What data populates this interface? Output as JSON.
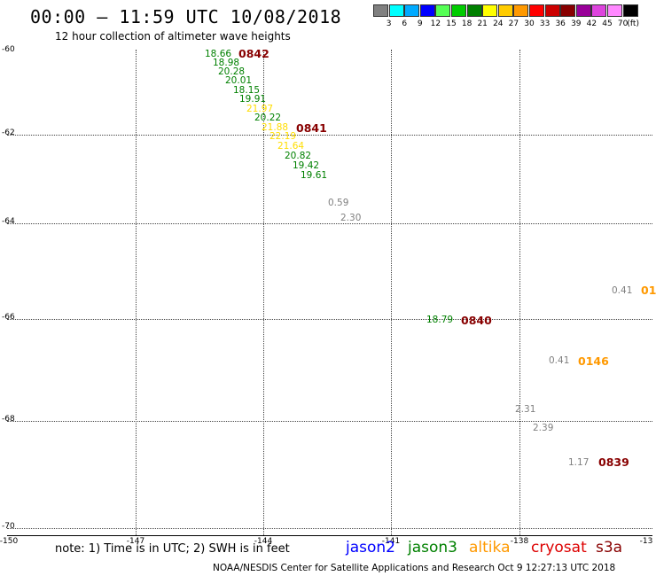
{
  "header": {
    "title": "00:00 – 11:59 UTC 10/08/2018",
    "subtitle": "12 hour collection of altimeter wave heights"
  },
  "legend": {
    "colors": [
      "#808080",
      "#00ffff",
      "#00aaff",
      "#0000ff",
      "#55ff55",
      "#00cc00",
      "#008000",
      "#ffff00",
      "#ffcc00",
      "#ff9900",
      "#ff0000",
      "#cc0000",
      "#880000",
      "#990099",
      "#dd44dd",
      "#ff88ff",
      "#000000"
    ],
    "labels": [
      "3",
      "6",
      "9",
      "12",
      "15",
      "18",
      "21",
      "24",
      "27",
      "30",
      "33",
      "36",
      "39",
      "42",
      "45",
      "70",
      "(ft)"
    ]
  },
  "axes": {
    "lat_labels": [
      "-60",
      "-62",
      "-64",
      "-66",
      "-68",
      "-70"
    ],
    "lon_labels": [
      "-150",
      "-147",
      "-144",
      "-141",
      "-138",
      "-13"
    ]
  },
  "observations": [
    {
      "text": "18.66",
      "color": "#008000"
    },
    {
      "text": "18.98",
      "color": "#008000"
    },
    {
      "text": "20.28",
      "color": "#008000"
    },
    {
      "text": "20.01",
      "color": "#008000"
    },
    {
      "text": "18.15",
      "color": "#008000"
    },
    {
      "text": "19.91",
      "color": "#008000"
    },
    {
      "text": "21.97",
      "color": "#ffdd00"
    },
    {
      "text": "20.22",
      "color": "#008000"
    },
    {
      "text": "21.88",
      "color": "#ffdd00"
    },
    {
      "text": "22.19",
      "color": "#ffdd00"
    },
    {
      "text": "21.64",
      "color": "#ffdd00"
    },
    {
      "text": "20.82",
      "color": "#008000"
    },
    {
      "text": "19.42",
      "color": "#008000"
    },
    {
      "text": "19.61",
      "color": "#008000"
    },
    {
      "text": "0.59",
      "color": "#808080"
    },
    {
      "text": "2.30",
      "color": "#808080"
    },
    {
      "text": "0.41",
      "color": "#808080"
    },
    {
      "text": "18.79",
      "color": "#008000"
    },
    {
      "text": "0.41",
      "color": "#808080"
    },
    {
      "text": "2.31",
      "color": "#808080"
    },
    {
      "text": "2.39",
      "color": "#808080"
    },
    {
      "text": "1.17",
      "color": "#808080"
    }
  ],
  "passes": [
    {
      "text": "0842",
      "color": "#880000"
    },
    {
      "text": "0841",
      "color": "#880000"
    },
    {
      "text": "01",
      "color": "#ff9900"
    },
    {
      "text": "0840",
      "color": "#880000"
    },
    {
      "text": "0146",
      "color": "#ff9900"
    },
    {
      "text": "0839",
      "color": "#880000"
    }
  ],
  "footer": {
    "note": "note: 1) Time is in UTC; 2) SWH is in feet",
    "satellites": [
      {
        "name": "jason2",
        "color": "#0000ff"
      },
      {
        "name": "jason3",
        "color": "#008000"
      },
      {
        "name": "altika",
        "color": "#ff9900"
      },
      {
        "name": "cryosat",
        "color": "#dd0000"
      },
      {
        "name": "s3a",
        "color": "#880000"
      }
    ],
    "credit": "NOAA/NESDIS Center for Satellite Applications and Research    Oct  9 12:27:13 UTC 2018"
  }
}
